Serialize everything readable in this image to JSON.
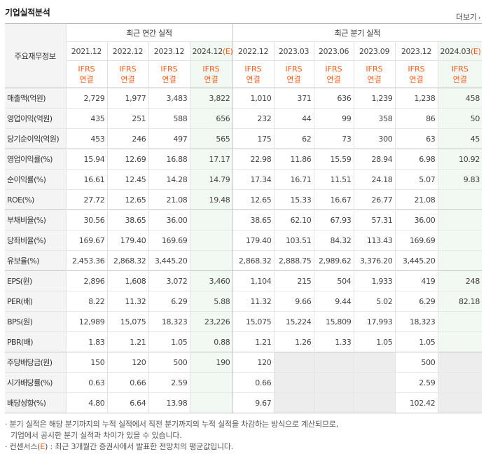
{
  "title": "기업실적분석",
  "more_label": "더보기",
  "corner_label": "주요재무정보",
  "group_annual": "최근 연간 실적",
  "group_quarter": "최근 분기 실적",
  "annual_periods": [
    {
      "label": "2021.12",
      "est": false
    },
    {
      "label": "2022.12",
      "est": false
    },
    {
      "label": "2023.12",
      "est": false
    },
    {
      "label": "2024.12",
      "mark": "(E)",
      "est": true
    }
  ],
  "quarter_periods": [
    {
      "label": "2022.12",
      "est": false
    },
    {
      "label": "2023.03",
      "est": false
    },
    {
      "label": "2023.06",
      "est": false
    },
    {
      "label": "2023.09",
      "est": false
    },
    {
      "label": "2023.12",
      "est": false
    },
    {
      "label": "2024.03",
      "mark": "(E)",
      "est": true
    }
  ],
  "ifrs_top": "IFRS",
  "ifrs_bottom": "연결",
  "rows": [
    {
      "label": "매출액(억원)",
      "values": [
        "2,729",
        "1,977",
        "3,483",
        "3,822",
        "1,010",
        "371",
        "636",
        "1,239",
        "1,238",
        "458"
      ],
      "sep": false
    },
    {
      "label": "영업이익(억원)",
      "values": [
        "435",
        "251",
        "588",
        "656",
        "232",
        "44",
        "99",
        "358",
        "86",
        "50"
      ],
      "sep": false
    },
    {
      "label": "당기순이익(억원)",
      "values": [
        "453",
        "246",
        "497",
        "565",
        "175",
        "62",
        "73",
        "300",
        "63",
        "45"
      ],
      "sep": false
    },
    {
      "label": "영업이익률(%)",
      "values": [
        "15.94",
        "12.69",
        "16.88",
        "17.17",
        "22.98",
        "11.86",
        "15.59",
        "28.94",
        "6.98",
        "10.92"
      ],
      "sep": true
    },
    {
      "label": "순이익률(%)",
      "values": [
        "16.61",
        "12.45",
        "14.28",
        "14.79",
        "17.34",
        "16.71",
        "11.51",
        "24.18",
        "5.07",
        "9.83"
      ],
      "sep": false
    },
    {
      "label": "ROE(%)",
      "values": [
        "27.72",
        "12.65",
        "21.08",
        "19.48",
        "12.65",
        "15.33",
        "16.67",
        "26.77",
        "21.08",
        ""
      ],
      "sep": false
    },
    {
      "label": "부채비율(%)",
      "values": [
        "30.56",
        "38.65",
        "36.00",
        "",
        "38.65",
        "62.10",
        "67.93",
        "57.31",
        "36.00",
        ""
      ],
      "sep": true
    },
    {
      "label": "당좌비율(%)",
      "values": [
        "169.67",
        "179.40",
        "169.69",
        "",
        "179.40",
        "103.51",
        "84.32",
        "113.43",
        "169.69",
        ""
      ],
      "sep": false
    },
    {
      "label": "유보율(%)",
      "values": [
        "2,453.36",
        "2,868.32",
        "3,445.20",
        "",
        "2,868.32",
        "2,888.75",
        "2,989.62",
        "3,376.20",
        "3,445.20",
        ""
      ],
      "sep": false
    },
    {
      "label": "EPS(원)",
      "values": [
        "2,896",
        "1,608",
        "3,072",
        "3,460",
        "1,104",
        "215",
        "504",
        "1,933",
        "419",
        "248"
      ],
      "sep": true
    },
    {
      "label": "PER(배)",
      "values": [
        "8.22",
        "11.32",
        "6.29",
        "5.88",
        "11.32",
        "9.66",
        "9.44",
        "5.02",
        "6.29",
        "82.18"
      ],
      "sep": false
    },
    {
      "label": "BPS(원)",
      "values": [
        "12,989",
        "15,075",
        "18,323",
        "23,226",
        "15,075",
        "15,224",
        "15,809",
        "17,993",
        "18,323",
        ""
      ],
      "sep": false
    },
    {
      "label": "PBR(배)",
      "values": [
        "1.83",
        "1.21",
        "1.05",
        "0.88",
        "1.21",
        "1.26",
        "1.33",
        "1.05",
        "1.05",
        ""
      ],
      "sep": false
    },
    {
      "label": "주당배당금(원)",
      "values": [
        "150",
        "120",
        "500",
        "190",
        "120",
        "",
        "",
        "",
        "500",
        ""
      ],
      "sep": true,
      "grey": [
        5,
        6,
        7,
        9
      ]
    },
    {
      "label": "시가배당률(%)",
      "values": [
        "0.63",
        "0.66",
        "2.59",
        "",
        "0.66",
        "",
        "",
        "",
        "2.59",
        ""
      ],
      "sep": false,
      "grey": [
        5,
        6,
        7,
        9
      ]
    },
    {
      "label": "배당성향(%)",
      "values": [
        "4.80",
        "6.64",
        "13.98",
        "",
        "9.67",
        "",
        "",
        "",
        "102.42",
        ""
      ],
      "sep": false,
      "grey": [
        5,
        6,
        7,
        9
      ]
    }
  ],
  "notes": {
    "line1": "분기 실적은 해당 분기까지의 누적 실적에서 직전 분기까지의 누적 실적을 차감하는 방식으로 계산되므로,",
    "line2": "기업에서 공시한 분기 실적과 차이가 있을 수 있습니다.",
    "line3_pre": "컨센서스(",
    "line3_e": "E",
    "line3_post": ") : 최근 3개월간 증권사에서 발표한 전망치의 평균값입니다."
  }
}
